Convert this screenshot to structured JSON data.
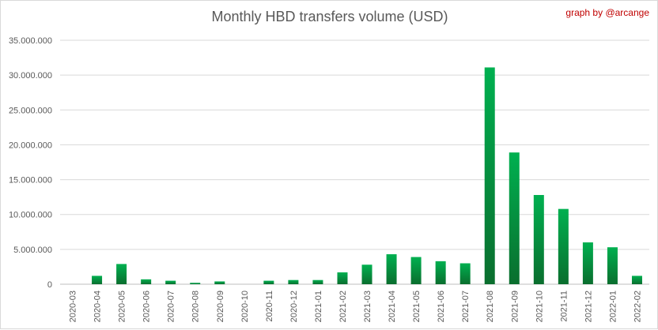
{
  "chart_data": {
    "type": "bar",
    "title": "Monthly HBD transfers volume (USD)",
    "credit": "graph by @arcange",
    "xlabel": "",
    "ylabel": "",
    "ylim": [
      0,
      35000000
    ],
    "yticks": [
      0,
      5000000,
      10000000,
      15000000,
      20000000,
      25000000,
      30000000,
      35000000
    ],
    "ytick_labels": [
      "0",
      "5.000.000",
      "10.000.000",
      "15.000.000",
      "20.000.000",
      "25.000.000",
      "30.000.000",
      "35.000.000"
    ],
    "grid": true,
    "legend": "none",
    "bar_color_top": "#00b050",
    "bar_color_bottom": "#0a6e2e",
    "categories": [
      "2020-03",
      "2020-04",
      "2020-05",
      "2020-06",
      "2020-07",
      "2020-08",
      "2020-09",
      "2020-10",
      "2020-11",
      "2020-12",
      "2021-01",
      "2021-02",
      "2021-03",
      "2021-04",
      "2021-05",
      "2021-06",
      "2021-07",
      "2021-08",
      "2021-09",
      "2021-10",
      "2021-11",
      "2021-12",
      "2022-01",
      "2022-02"
    ],
    "values": [
      0,
      1200000,
      2900000,
      700000,
      500000,
      200000,
      400000,
      0,
      500000,
      600000,
      600000,
      1700000,
      2800000,
      4300000,
      3900000,
      3300000,
      3000000,
      31100000,
      18900000,
      12800000,
      10800000,
      6000000,
      5300000,
      1200000
    ]
  }
}
